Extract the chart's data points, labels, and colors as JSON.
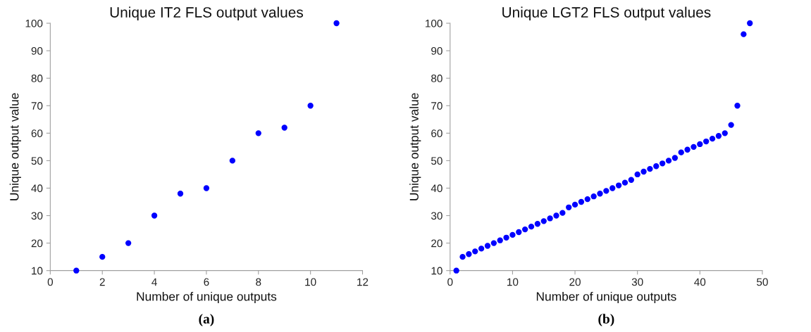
{
  "chart_data": [
    {
      "type": "scatter",
      "title": "Unique IT2 FLS output values",
      "xlabel": "Number of unique outputs",
      "ylabel": "Unique output value",
      "annotations": [
        "(a)"
      ],
      "x": [
        1,
        2,
        3,
        4,
        5,
        6,
        7,
        8,
        9,
        10,
        11
      ],
      "series": [
        {
          "color": "#0000ff",
          "values": [
            10,
            15,
            20,
            30,
            38,
            40,
            50,
            60,
            62,
            70,
            100
          ]
        }
      ],
      "xlim": [
        0,
        12
      ],
      "xticks": [
        0,
        2,
        4,
        6,
        8,
        10,
        12
      ],
      "ylim": [
        10,
        100
      ],
      "yticks": [
        10,
        20,
        30,
        40,
        50,
        60,
        70,
        80,
        90,
        100
      ],
      "marker": "circle",
      "grid": false,
      "legend": false
    },
    {
      "type": "scatter",
      "title": "Unique LGT2 FLS output values",
      "xlabel": "Number of unique outputs",
      "ylabel": "Unique output value",
      "annotations": [
        "(b)"
      ],
      "x": [
        1,
        2,
        3,
        4,
        5,
        6,
        7,
        8,
        9,
        10,
        11,
        12,
        13,
        14,
        15,
        16,
        17,
        18,
        19,
        20,
        21,
        22,
        23,
        24,
        25,
        26,
        27,
        28,
        29,
        30,
        31,
        32,
        33,
        34,
        35,
        36,
        37,
        38,
        39,
        40,
        41,
        42,
        43,
        44,
        45,
        46,
        47,
        48
      ],
      "series": [
        {
          "color": "#0000ff",
          "values": [
            10,
            15,
            16,
            17,
            18,
            19,
            20,
            21,
            22,
            23,
            24,
            25,
            26,
            27,
            28,
            29,
            30,
            31,
            33,
            34,
            35,
            36,
            37,
            38,
            39,
            40,
            41,
            42,
            43,
            45,
            46,
            47,
            48,
            49,
            50,
            51,
            53,
            54,
            55,
            56,
            57,
            58,
            59,
            60,
            63,
            70,
            96,
            100
          ]
        }
      ],
      "xlim": [
        0,
        50
      ],
      "xticks": [
        0,
        10,
        20,
        30,
        40,
        50
      ],
      "ylim": [
        10,
        100
      ],
      "yticks": [
        10,
        20,
        30,
        40,
        50,
        60,
        70,
        80,
        90,
        100
      ],
      "marker": "circle",
      "grid": false,
      "legend": false
    }
  ]
}
